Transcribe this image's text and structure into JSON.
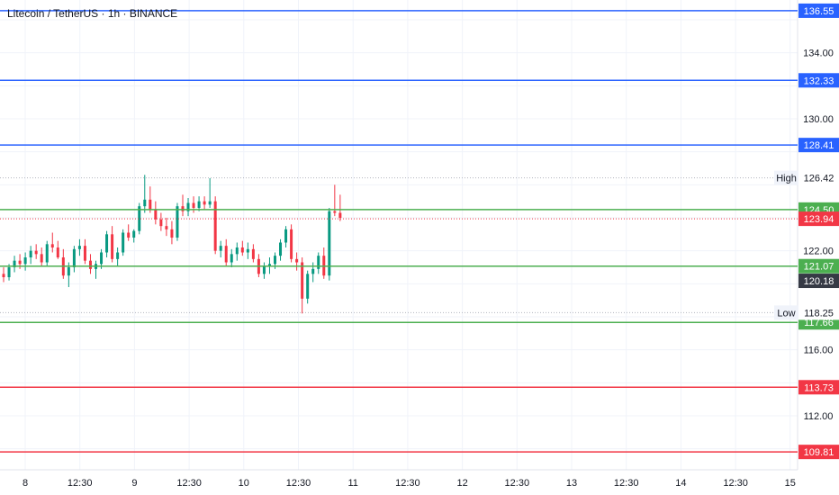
{
  "chart_data": {
    "type": "candlestick",
    "title": "Litecoin / TetherUS · 1h · BINANCE",
    "y_axis": {
      "ticks": [
        "134.00",
        "130.00",
        "122.00",
        "116.00",
        "112.00"
      ],
      "range": [
        107.2,
        137.2
      ],
      "side": "right"
    },
    "x_axis": {
      "ticks": [
        "8",
        "12:30",
        "9",
        "12:30",
        "10",
        "12:30",
        "11",
        "12:30",
        "12",
        "12:30",
        "13",
        "12:30",
        "14",
        "12:30",
        "15"
      ]
    },
    "grid": true,
    "price_lines": [
      {
        "value": 136.55,
        "label": "136.55",
        "color": "#2962ff",
        "style": "solid"
      },
      {
        "value": 132.33,
        "label": "132.33",
        "color": "#2962ff",
        "style": "solid"
      },
      {
        "value": 128.41,
        "label": "128.41",
        "color": "#2962ff",
        "style": "solid"
      },
      {
        "value": 124.5,
        "label": "124.50",
        "color": "#4caf50",
        "style": "solid"
      },
      {
        "value": 121.07,
        "label": "121.07",
        "color": "#4caf50",
        "style": "solid"
      },
      {
        "value": 117.66,
        "label": "117.66",
        "color": "#4caf50",
        "style": "solid"
      },
      {
        "value": 113.73,
        "label": "113.73",
        "color": "#f23645",
        "style": "solid"
      },
      {
        "value": 109.81,
        "label": "109.81",
        "color": "#f23645",
        "style": "solid"
      }
    ],
    "high": {
      "name": "High",
      "value": 126.42,
      "label": "126.42"
    },
    "low": {
      "name": "Low",
      "value": 118.25,
      "label": "118.25"
    },
    "current_price": {
      "value": 123.94,
      "label": "123.94",
      "color": "#f23645"
    },
    "prev_close": {
      "value": 120.18,
      "label": "120.18",
      "color": "#363a45"
    },
    "candles": [
      [
        120.6,
        121.0,
        120.1,
        120.4
      ],
      [
        120.4,
        121.2,
        120.2,
        121.0
      ],
      [
        121.0,
        121.7,
        120.7,
        121.4
      ],
      [
        121.4,
        121.8,
        120.9,
        121.2
      ],
      [
        121.2,
        121.9,
        120.8,
        121.6
      ],
      [
        121.6,
        122.3,
        121.2,
        122.0
      ],
      [
        122.0,
        122.4,
        121.5,
        121.8
      ],
      [
        121.8,
        122.2,
        121.1,
        121.3
      ],
      [
        121.3,
        122.6,
        121.1,
        122.4
      ],
      [
        122.4,
        123.1,
        121.9,
        122.2
      ],
      [
        122.2,
        122.6,
        121.5,
        121.6
      ],
      [
        121.6,
        122.1,
        120.3,
        120.5
      ],
      [
        120.5,
        121.3,
        119.8,
        121.0
      ],
      [
        121.0,
        122.3,
        120.7,
        122.1
      ],
      [
        122.1,
        122.7,
        121.7,
        122.3
      ],
      [
        122.3,
        122.7,
        121.2,
        121.4
      ],
      [
        121.4,
        121.8,
        120.6,
        120.9
      ],
      [
        120.9,
        121.4,
        120.3,
        121.2
      ],
      [
        121.2,
        122.1,
        120.9,
        121.9
      ],
      [
        121.9,
        123.2,
        121.6,
        123.0
      ],
      [
        123.0,
        123.5,
        121.3,
        121.5
      ],
      [
        121.5,
        122.2,
        121.1,
        121.9
      ],
      [
        121.9,
        123.3,
        121.7,
        123.1
      ],
      [
        123.1,
        123.6,
        122.6,
        122.8
      ],
      [
        122.8,
        123.3,
        122.5,
        123.2
      ],
      [
        123.2,
        124.9,
        123.0,
        124.7
      ],
      [
        124.7,
        126.6,
        124.3,
        125.1
      ],
      [
        125.1,
        125.9,
        124.3,
        124.5
      ],
      [
        124.5,
        125.0,
        123.6,
        123.9
      ],
      [
        123.9,
        124.3,
        123.2,
        123.5
      ],
      [
        123.5,
        124.0,
        122.9,
        123.3
      ],
      [
        123.3,
        123.8,
        122.4,
        122.8
      ],
      [
        122.8,
        124.9,
        122.6,
        124.7
      ],
      [
        124.7,
        125.4,
        124.1,
        124.4
      ],
      [
        124.4,
        125.2,
        124.1,
        124.9
      ],
      [
        124.9,
        125.3,
        124.3,
        124.6
      ],
      [
        124.6,
        125.3,
        124.4,
        125.0
      ],
      [
        125.0,
        125.3,
        124.5,
        124.8
      ],
      [
        124.8,
        126.4,
        124.6,
        125.0
      ],
      [
        125.0,
        125.3,
        121.8,
        122.0
      ],
      [
        122.0,
        122.6,
        121.6,
        122.3
      ],
      [
        122.3,
        122.7,
        121.1,
        121.3
      ],
      [
        121.3,
        122.1,
        121.0,
        121.8
      ],
      [
        121.8,
        122.5,
        121.4,
        122.2
      ],
      [
        122.2,
        122.6,
        121.7,
        121.9
      ],
      [
        121.9,
        122.5,
        121.5,
        122.1
      ],
      [
        122.1,
        122.4,
        121.3,
        121.5
      ],
      [
        121.5,
        121.8,
        120.4,
        120.6
      ],
      [
        120.6,
        121.3,
        120.3,
        121.1
      ],
      [
        121.1,
        121.6,
        120.6,
        121.2
      ],
      [
        121.2,
        121.9,
        120.9,
        121.7
      ],
      [
        121.7,
        122.7,
        121.4,
        122.5
      ],
      [
        122.5,
        123.5,
        122.2,
        123.3
      ],
      [
        123.3,
        123.6,
        121.3,
        121.5
      ],
      [
        121.5,
        121.9,
        120.8,
        121.3
      ],
      [
        121.3,
        121.6,
        118.2,
        119.1
      ],
      [
        119.1,
        120.8,
        118.8,
        120.6
      ],
      [
        120.6,
        121.3,
        120.1,
        120.9
      ],
      [
        120.9,
        121.9,
        120.6,
        121.7
      ],
      [
        121.7,
        122.2,
        120.3,
        120.5
      ],
      [
        120.5,
        124.6,
        120.2,
        124.4
      ],
      [
        124.4,
        126.0,
        124.1,
        124.3
      ],
      [
        124.3,
        125.4,
        123.8,
        124.0
      ]
    ]
  }
}
